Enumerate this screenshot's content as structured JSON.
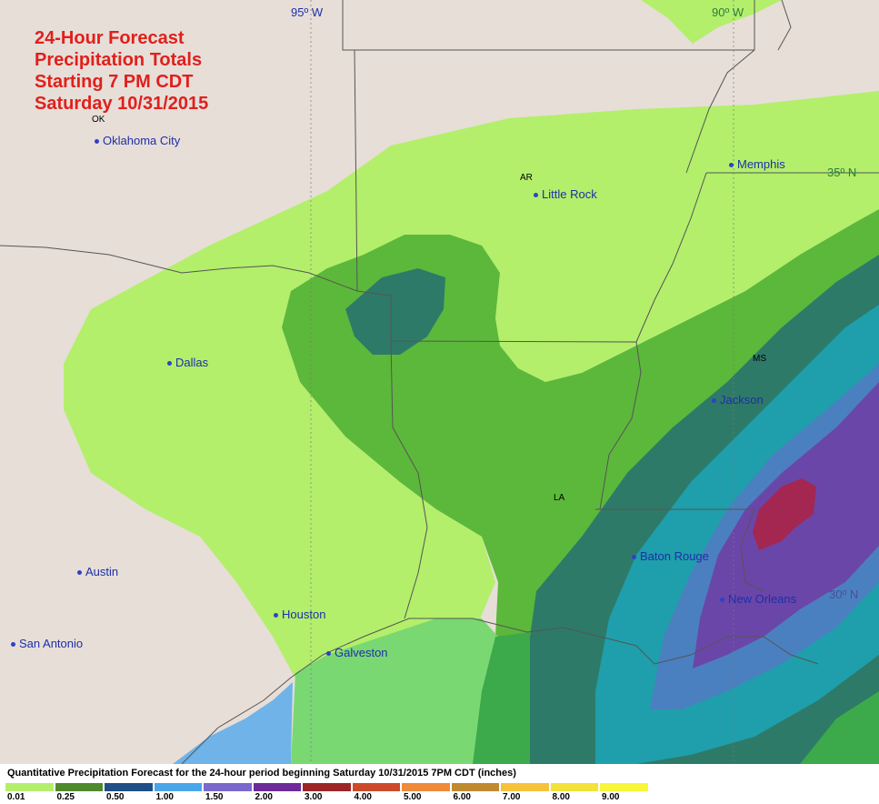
{
  "title": {
    "line1": "24-Hour Forecast",
    "line2": "Precipitation Totals",
    "line3": "Starting 7 PM CDT",
    "line4": "Saturday 10/31/2015"
  },
  "grid_labels": {
    "lon_95": "95º W",
    "lon_90": "90º W",
    "lat_35": "35º N",
    "lat_30": "30º N"
  },
  "states": {
    "ok": "OK",
    "ar": "AR",
    "ms": "MS",
    "la": "LA"
  },
  "cities": {
    "oklahoma_city": "Oklahoma City",
    "little_rock": "Little Rock",
    "memphis": "Memphis",
    "dallas": "Dallas",
    "jackson": "Jackson",
    "baton_rouge": "Baton Rouge",
    "new_orleans": "New Orleans",
    "austin": "Austin",
    "houston": "Houston",
    "galveston": "Galveston",
    "san_antonio": "San Antonio"
  },
  "legend": {
    "title": "Quantitative Precipitation Forecast for the 24-hour period beginning Saturday 10/31/2015 7PM CDT (inches)",
    "items": [
      {
        "label": "0.01",
        "color": "#b3ef6b"
      },
      {
        "label": "0.25",
        "color": "#4e8a2c"
      },
      {
        "label": "0.50",
        "color": "#1f4f86"
      },
      {
        "label": "1.00",
        "color": "#4aa6e8"
      },
      {
        "label": "1.50",
        "color": "#7a68cc"
      },
      {
        "label": "2.00",
        "color": "#6e2a98"
      },
      {
        "label": "3.00",
        "color": "#9c2626"
      },
      {
        "label": "4.00",
        "color": "#cc4a2a"
      },
      {
        "label": "5.00",
        "color": "#ee8a3a"
      },
      {
        "label": "6.00",
        "color": "#c08a30"
      },
      {
        "label": "7.00",
        "color": "#f6c23c"
      },
      {
        "label": "8.00",
        "color": "#f2e23a"
      },
      {
        "label": "9.00",
        "color": "#f8f63a"
      }
    ]
  },
  "colors": {
    "land": "#e7ded8",
    "precip_001": "#b3ef6b",
    "precip_025": "#5cb83a",
    "precip_050": "#2e7a68",
    "precip_100": "#1e9fab",
    "precip_150": "#4b80c0",
    "precip_200": "#6a46a8",
    "precip_300": "#a32750",
    "gulf_light_green": "#7ad872",
    "gulf_green": "#3caa4a",
    "water_blue": "#6fb3e8",
    "title_red": "#e0201c",
    "city_blue": "#1e2fa8"
  }
}
